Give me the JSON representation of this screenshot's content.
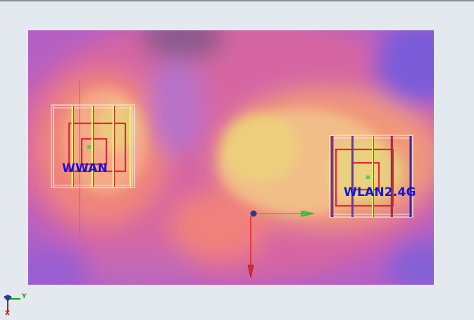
{
  "viewport": {
    "background": "#e4e9f0",
    "field_palette": [
      "#7a5ad6",
      "#b055c8",
      "#e0609e",
      "#f28a7c",
      "#f5b08a",
      "#e8d27a"
    ]
  },
  "antennas": [
    {
      "id": "wwan",
      "label": "WWAN"
    },
    {
      "id": "wlan",
      "label": "WLAN2.4G"
    }
  ],
  "origin_axes": {
    "x_color": "#d92a2a",
    "y_color": "#33cc44",
    "z_color": "#2a3a9a"
  },
  "orientation_triad": {
    "y_label": "Y",
    "x_label": "X"
  }
}
